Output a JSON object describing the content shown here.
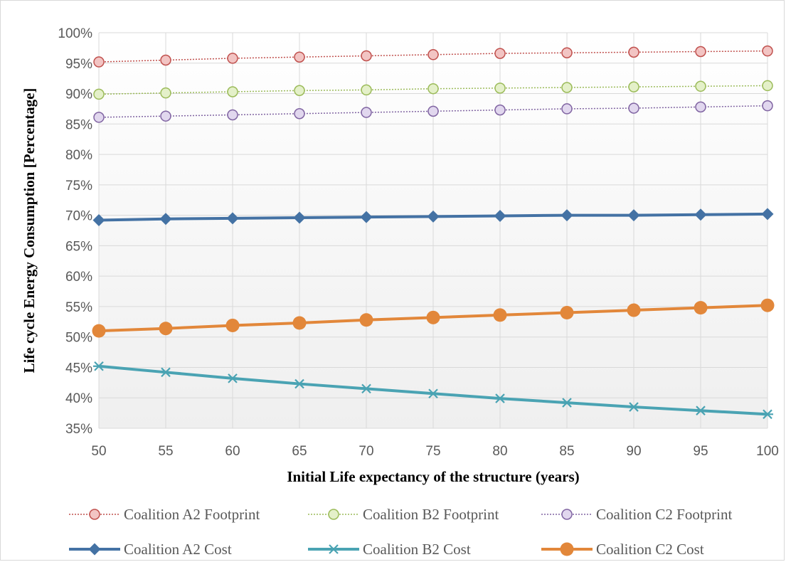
{
  "chart_data": {
    "type": "line",
    "title": "",
    "xlabel": "Initial Life expectancy of the structure (years)",
    "ylabel": "Life cycle Energy Consumption [Percentage]",
    "x": [
      50,
      55,
      60,
      65,
      70,
      75,
      80,
      85,
      90,
      95,
      100
    ],
    "xlim": [
      50,
      100
    ],
    "ylim": [
      35,
      100
    ],
    "y_ticks": [
      35,
      40,
      45,
      50,
      55,
      60,
      65,
      70,
      75,
      80,
      85,
      90,
      95,
      100
    ],
    "y_tick_labels": [
      "35%",
      "40%",
      "45%",
      "50%",
      "55%",
      "60%",
      "65%",
      "70%",
      "75%",
      "80%",
      "85%",
      "90%",
      "95%",
      "100%"
    ],
    "x_tick_labels": [
      "50",
      "55",
      "60",
      "65",
      "70",
      "75",
      "80",
      "85",
      "90",
      "95",
      "100"
    ],
    "grid": true,
    "legend_position": "bottom",
    "series": [
      {
        "name": "Coalition A2 Footprint",
        "color": "#c0504d",
        "fill": "#f2c4c3",
        "marker": "circle-small",
        "style": "dotted",
        "values": [
          95.2,
          95.5,
          95.8,
          96.0,
          96.2,
          96.4,
          96.6,
          96.7,
          96.8,
          96.9,
          97.0
        ]
      },
      {
        "name": "Coalition B2 Footprint",
        "color": "#9bbb59",
        "fill": "#e4f0c9",
        "marker": "circle-small",
        "style": "dotted",
        "values": [
          89.9,
          90.1,
          90.3,
          90.5,
          90.6,
          90.8,
          90.9,
          91.0,
          91.1,
          91.2,
          91.3
        ]
      },
      {
        "name": "Coalition C2 Footprint",
        "color": "#8064a2",
        "fill": "#e1d7ee",
        "marker": "circle-small",
        "style": "dotted",
        "values": [
          86.1,
          86.3,
          86.5,
          86.7,
          86.9,
          87.1,
          87.3,
          87.5,
          87.6,
          87.8,
          88.0
        ]
      },
      {
        "name": "Coalition A2 Cost",
        "color": "#4472a4",
        "marker": "diamond",
        "style": "solid",
        "values": [
          69.2,
          69.4,
          69.5,
          69.6,
          69.7,
          69.8,
          69.9,
          70.0,
          70.0,
          70.1,
          70.2
        ]
      },
      {
        "name": "Coalition B2 Cost",
        "color": "#4aa3b3",
        "marker": "asterisk",
        "style": "solid",
        "values": [
          45.2,
          44.2,
          43.2,
          42.3,
          41.5,
          40.7,
          39.9,
          39.2,
          38.5,
          37.9,
          37.3
        ]
      },
      {
        "name": "Coalition C2 Cost",
        "color": "#e2873a",
        "marker": "circle-large",
        "style": "solid",
        "values": [
          51.0,
          51.4,
          51.9,
          52.3,
          52.8,
          53.2,
          53.6,
          54.0,
          54.4,
          54.8,
          55.2
        ]
      }
    ]
  }
}
